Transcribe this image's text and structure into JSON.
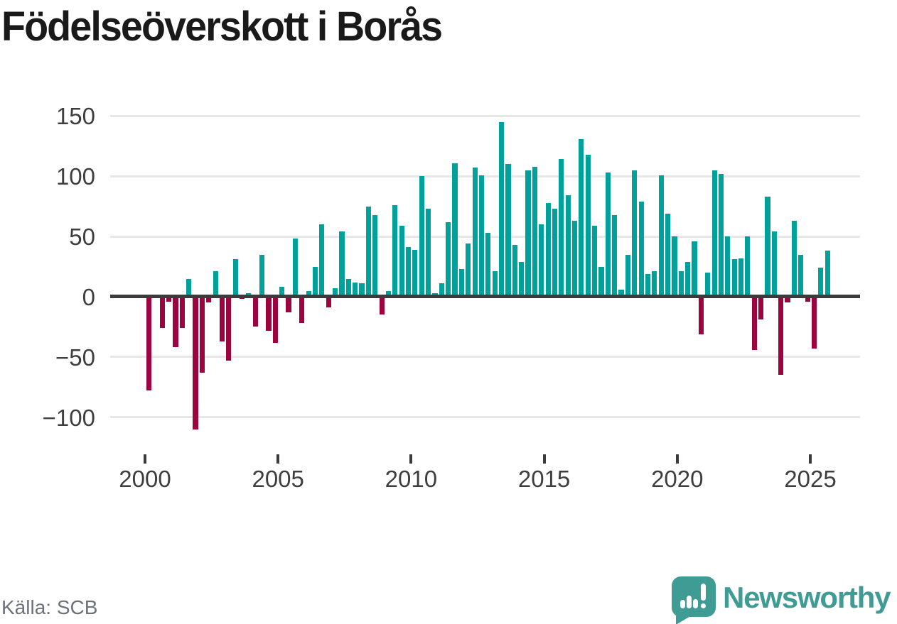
{
  "title": "Födelseöverskott i Borås",
  "source_note": "Källa: SCB",
  "logo": {
    "wordmark": "Newsworthy",
    "icon": "newsworthy-speech-bubble-chart-icon"
  },
  "colors": {
    "positive_bar": "#00a19a",
    "negative_bar": "#9c0440",
    "zero_axis": "#3b3b3b",
    "gridline": "#e7e7e7",
    "tick_label": "#3e3e3e",
    "title_text": "#1a1a1a",
    "source_text": "#6d717a",
    "brand_teal": "#3f9c95"
  },
  "chart_data": {
    "type": "bar",
    "title": "Födelseöverskott i Borås",
    "frequency": "quarterly",
    "start_period": "2000-Q1",
    "end_period": "2025-Q3",
    "values": [
      -78,
      0,
      -26,
      -4,
      -42,
      -26,
      15,
      -110,
      -63,
      -5,
      21,
      -37,
      -53,
      31,
      -2,
      3,
      -25,
      35,
      -28,
      -38,
      8,
      -13,
      48,
      -22,
      5,
      25,
      60,
      -9,
      7,
      54,
      15,
      12,
      11,
      75,
      68,
      -15,
      5,
      76,
      59,
      41,
      39,
      100,
      73,
      3,
      11,
      62,
      111,
      23,
      44,
      107,
      101,
      53,
      21,
      145,
      110,
      43,
      29,
      105,
      108,
      60,
      78,
      73,
      114,
      84,
      63,
      131,
      118,
      59,
      25,
      103,
      68,
      6,
      35,
      105,
      79,
      19,
      21,
      101,
      69,
      50,
      21,
      29,
      46,
      -31,
      20,
      105,
      102,
      50,
      31,
      32,
      50,
      -44,
      -19,
      83,
      54,
      -65,
      -5,
      63,
      35,
      -4,
      -43,
      24,
      38
    ],
    "x_tick_labels": [
      "2000",
      "2005",
      "2010",
      "2015",
      "2020",
      "2025"
    ],
    "y_tick_labels": [
      "150",
      "100",
      "50",
      "0",
      "−50",
      "−100"
    ],
    "y_ticks": [
      150,
      100,
      50,
      0,
      -50,
      -100
    ],
    "ylim": [
      -130,
      164
    ],
    "grid": "horizontal",
    "legend": "none",
    "xlabel": "",
    "ylabel": ""
  }
}
